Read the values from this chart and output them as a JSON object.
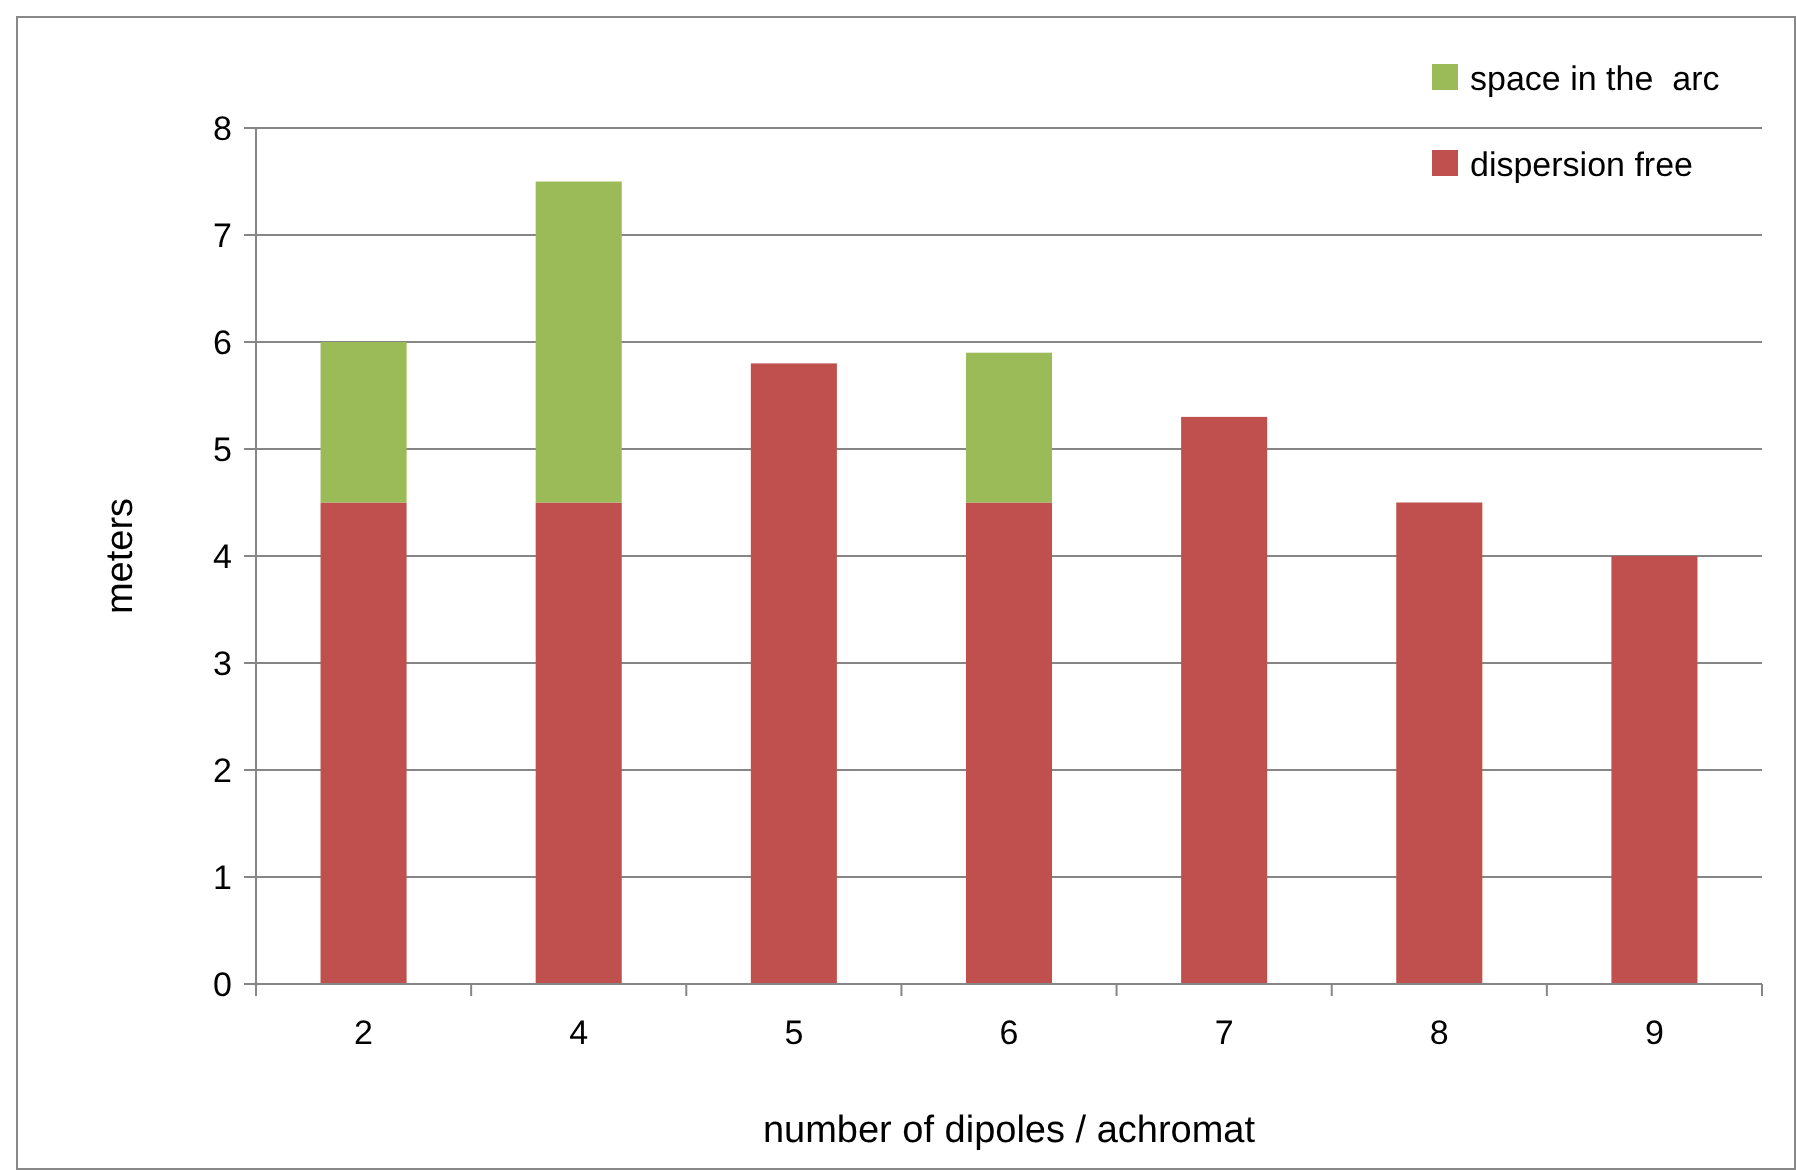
{
  "chart_data": {
    "type": "bar",
    "stacked": true,
    "xlabel": "number of dipoles / achromat",
    "ylabel": "meters",
    "categories": [
      "2",
      "4",
      "5",
      "6",
      "7",
      "8",
      "9"
    ],
    "series": [
      {
        "name": "dispersion free",
        "color": "#c0504d",
        "values": [
          4.5,
          4.5,
          5.8,
          4.5,
          5.3,
          4.5,
          4.0
        ]
      },
      {
        "name": "space in the  arc",
        "color": "#9bbb59",
        "values": [
          1.5,
          3.0,
          null,
          1.4,
          null,
          null,
          null
        ]
      }
    ],
    "ylim": [
      0,
      8
    ],
    "yticks": [
      0,
      1,
      2,
      3,
      4,
      5,
      6,
      7,
      8
    ],
    "grid": "y",
    "legend": "top right"
  }
}
